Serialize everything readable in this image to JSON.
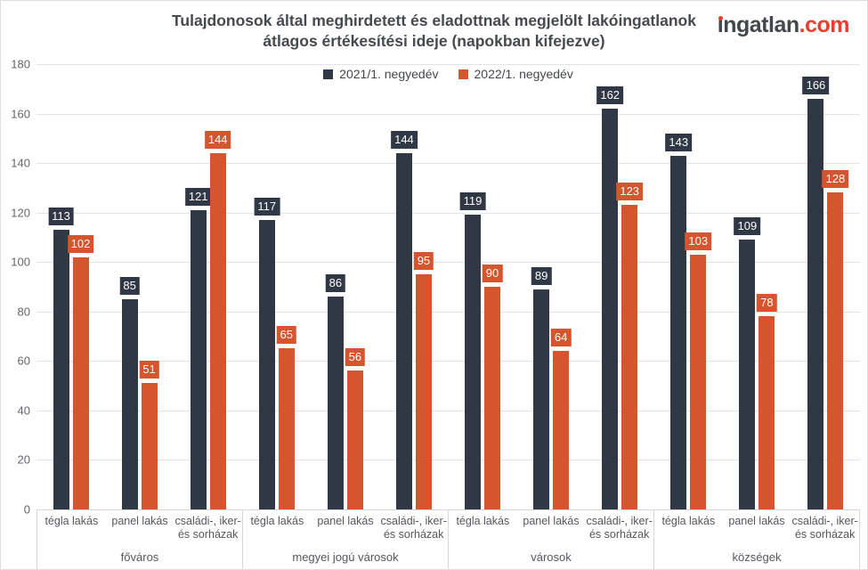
{
  "header": {
    "title_line1": "Tulajdonosok által meghirdetett és eladottnak megjelölt lakóingatlanok",
    "title_line2": "átlagos értékesítési ideje (napokban kifejezve)",
    "logo": {
      "name": "ingatlan",
      "tld": ".com",
      "accent_color": "#e8402c",
      "text_color": "#43474c"
    }
  },
  "chart_data": {
    "type": "bar",
    "title": "Tulajdonosok által meghirdetett és eladottnak megjelölt lakóingatlanok átlagos értékesítési ideje (napokban kifejezve)",
    "xlabel": "",
    "ylabel": "",
    "unit": "napok (days)",
    "ylim": [
      0,
      180
    ],
    "yticks": [
      0,
      20,
      40,
      60,
      80,
      100,
      120,
      140,
      160,
      180
    ],
    "grid": true,
    "legend_position": "top-center",
    "series": [
      {
        "name": "2021/1. negyedév",
        "color": "#303745"
      },
      {
        "name": "2022/1. negyedév",
        "color": "#d4552e"
      }
    ],
    "groups": [
      {
        "label": "főváros",
        "categories": [
          "tégla lakás",
          "panel lakás",
          "családi-, iker-\nés sorházak"
        ],
        "values": {
          "2021/1. negyedév": [
            113,
            85,
            121
          ],
          "2022/1. negyedév": [
            102,
            51,
            144
          ]
        }
      },
      {
        "label": "megyei jogú városok",
        "categories": [
          "tégla lakás",
          "panel lakás",
          "családi-, iker-\nés sorházak"
        ],
        "values": {
          "2021/1. negyedév": [
            117,
            86,
            144
          ],
          "2022/1. negyedév": [
            65,
            56,
            95
          ]
        }
      },
      {
        "label": "városok",
        "categories": [
          "tégla lakás",
          "panel lakás",
          "családi-, iker-\nés sorházak"
        ],
        "values": {
          "2021/1. negyedév": [
            119,
            89,
            162
          ],
          "2022/1. negyedév": [
            90,
            64,
            123
          ]
        }
      },
      {
        "label": "községek",
        "categories": [
          "tégla lakás",
          "panel lakás",
          "családi-, iker-\nés sorházak"
        ],
        "values": {
          "2021/1. negyedév": [
            143,
            109,
            166
          ],
          "2022/1. negyedév": [
            103,
            78,
            128
          ]
        }
      }
    ]
  }
}
